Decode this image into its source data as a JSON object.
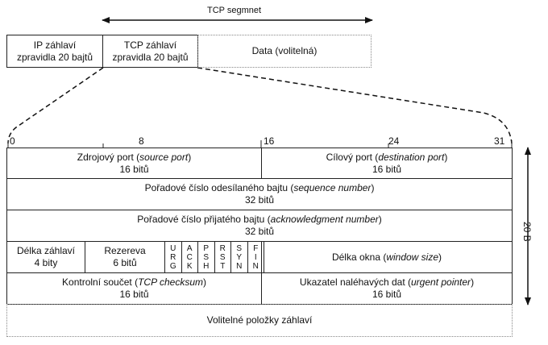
{
  "segment_label": "TCP segmnet",
  "top_row": {
    "ip_header": "IP záhlaví\nzpravidla 20 bajtů",
    "tcp_header": "TCP záhlaví\nzpravidla 20 bajtů",
    "data": "Data (volitelná)"
  },
  "bit_positions": [
    "0",
    "8",
    "16",
    "24",
    "31"
  ],
  "rows": {
    "source_port": {
      "name": "Zdrojový port (",
      "en": "source port",
      "close": ")",
      "size": "16 bitů"
    },
    "dest_port": {
      "name": "Cílový port (",
      "en": "destination port",
      "close": ")",
      "size": "16 bitů"
    },
    "seq": {
      "name": "Pořadové číslo odesílaného bajtu (",
      "en": "sequence number",
      "close": ")",
      "size": "32 bitů"
    },
    "ack": {
      "name": "Pořadové číslo přijatého bajtu (",
      "en": "acknowledgment number",
      "close": ")",
      "size": "32 bitů"
    },
    "header_len": {
      "name": "Délka záhlaví",
      "size": "4 bity"
    },
    "reserved": {
      "name": "Rezereva",
      "size": "6 bitů"
    },
    "flags": [
      "URG",
      "ACK",
      "PSH",
      "RST",
      "SYN",
      "FIN"
    ],
    "window": {
      "name": "Délka okna (",
      "en": "window size",
      "close": ")"
    },
    "checksum": {
      "name": "Kontrolní součet (",
      "en": "TCP checksum",
      "close": ")",
      "size": "16 bitů"
    },
    "urgent": {
      "name": "Ukazatel naléhavých dat (",
      "en": "urgent pointer",
      "close": ")",
      "size": "16 bitů"
    },
    "options": "Volitelné položky záhlaví"
  },
  "side_label": "20 B"
}
